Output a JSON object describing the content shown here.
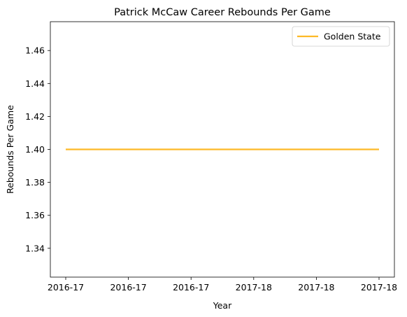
{
  "chart_data": {
    "type": "line",
    "title": "Patrick McCaw Career Rebounds Per Game",
    "xlabel": "Year",
    "ylabel": "Rebounds Per Game",
    "x_tick_labels": [
      "2016-17",
      "2016-17",
      "2016-17",
      "2017-18",
      "2017-18",
      "2017-18"
    ],
    "x_range": [
      0,
      1
    ],
    "ylim": [
      1.3225,
      1.4775
    ],
    "y_ticks": [
      1.34,
      1.36,
      1.38,
      1.4,
      1.42,
      1.44,
      1.46
    ],
    "y_tick_labels": [
      "1.34",
      "1.36",
      "1.38",
      "1.40",
      "1.42",
      "1.44",
      "1.46"
    ],
    "grid": false,
    "legend_position": "top-right",
    "series": [
      {
        "name": "Golden State",
        "color": "#FDB927",
        "points": [
          {
            "x": 0,
            "y": 1.4
          },
          {
            "x": 1,
            "y": 1.4
          }
        ]
      }
    ]
  }
}
